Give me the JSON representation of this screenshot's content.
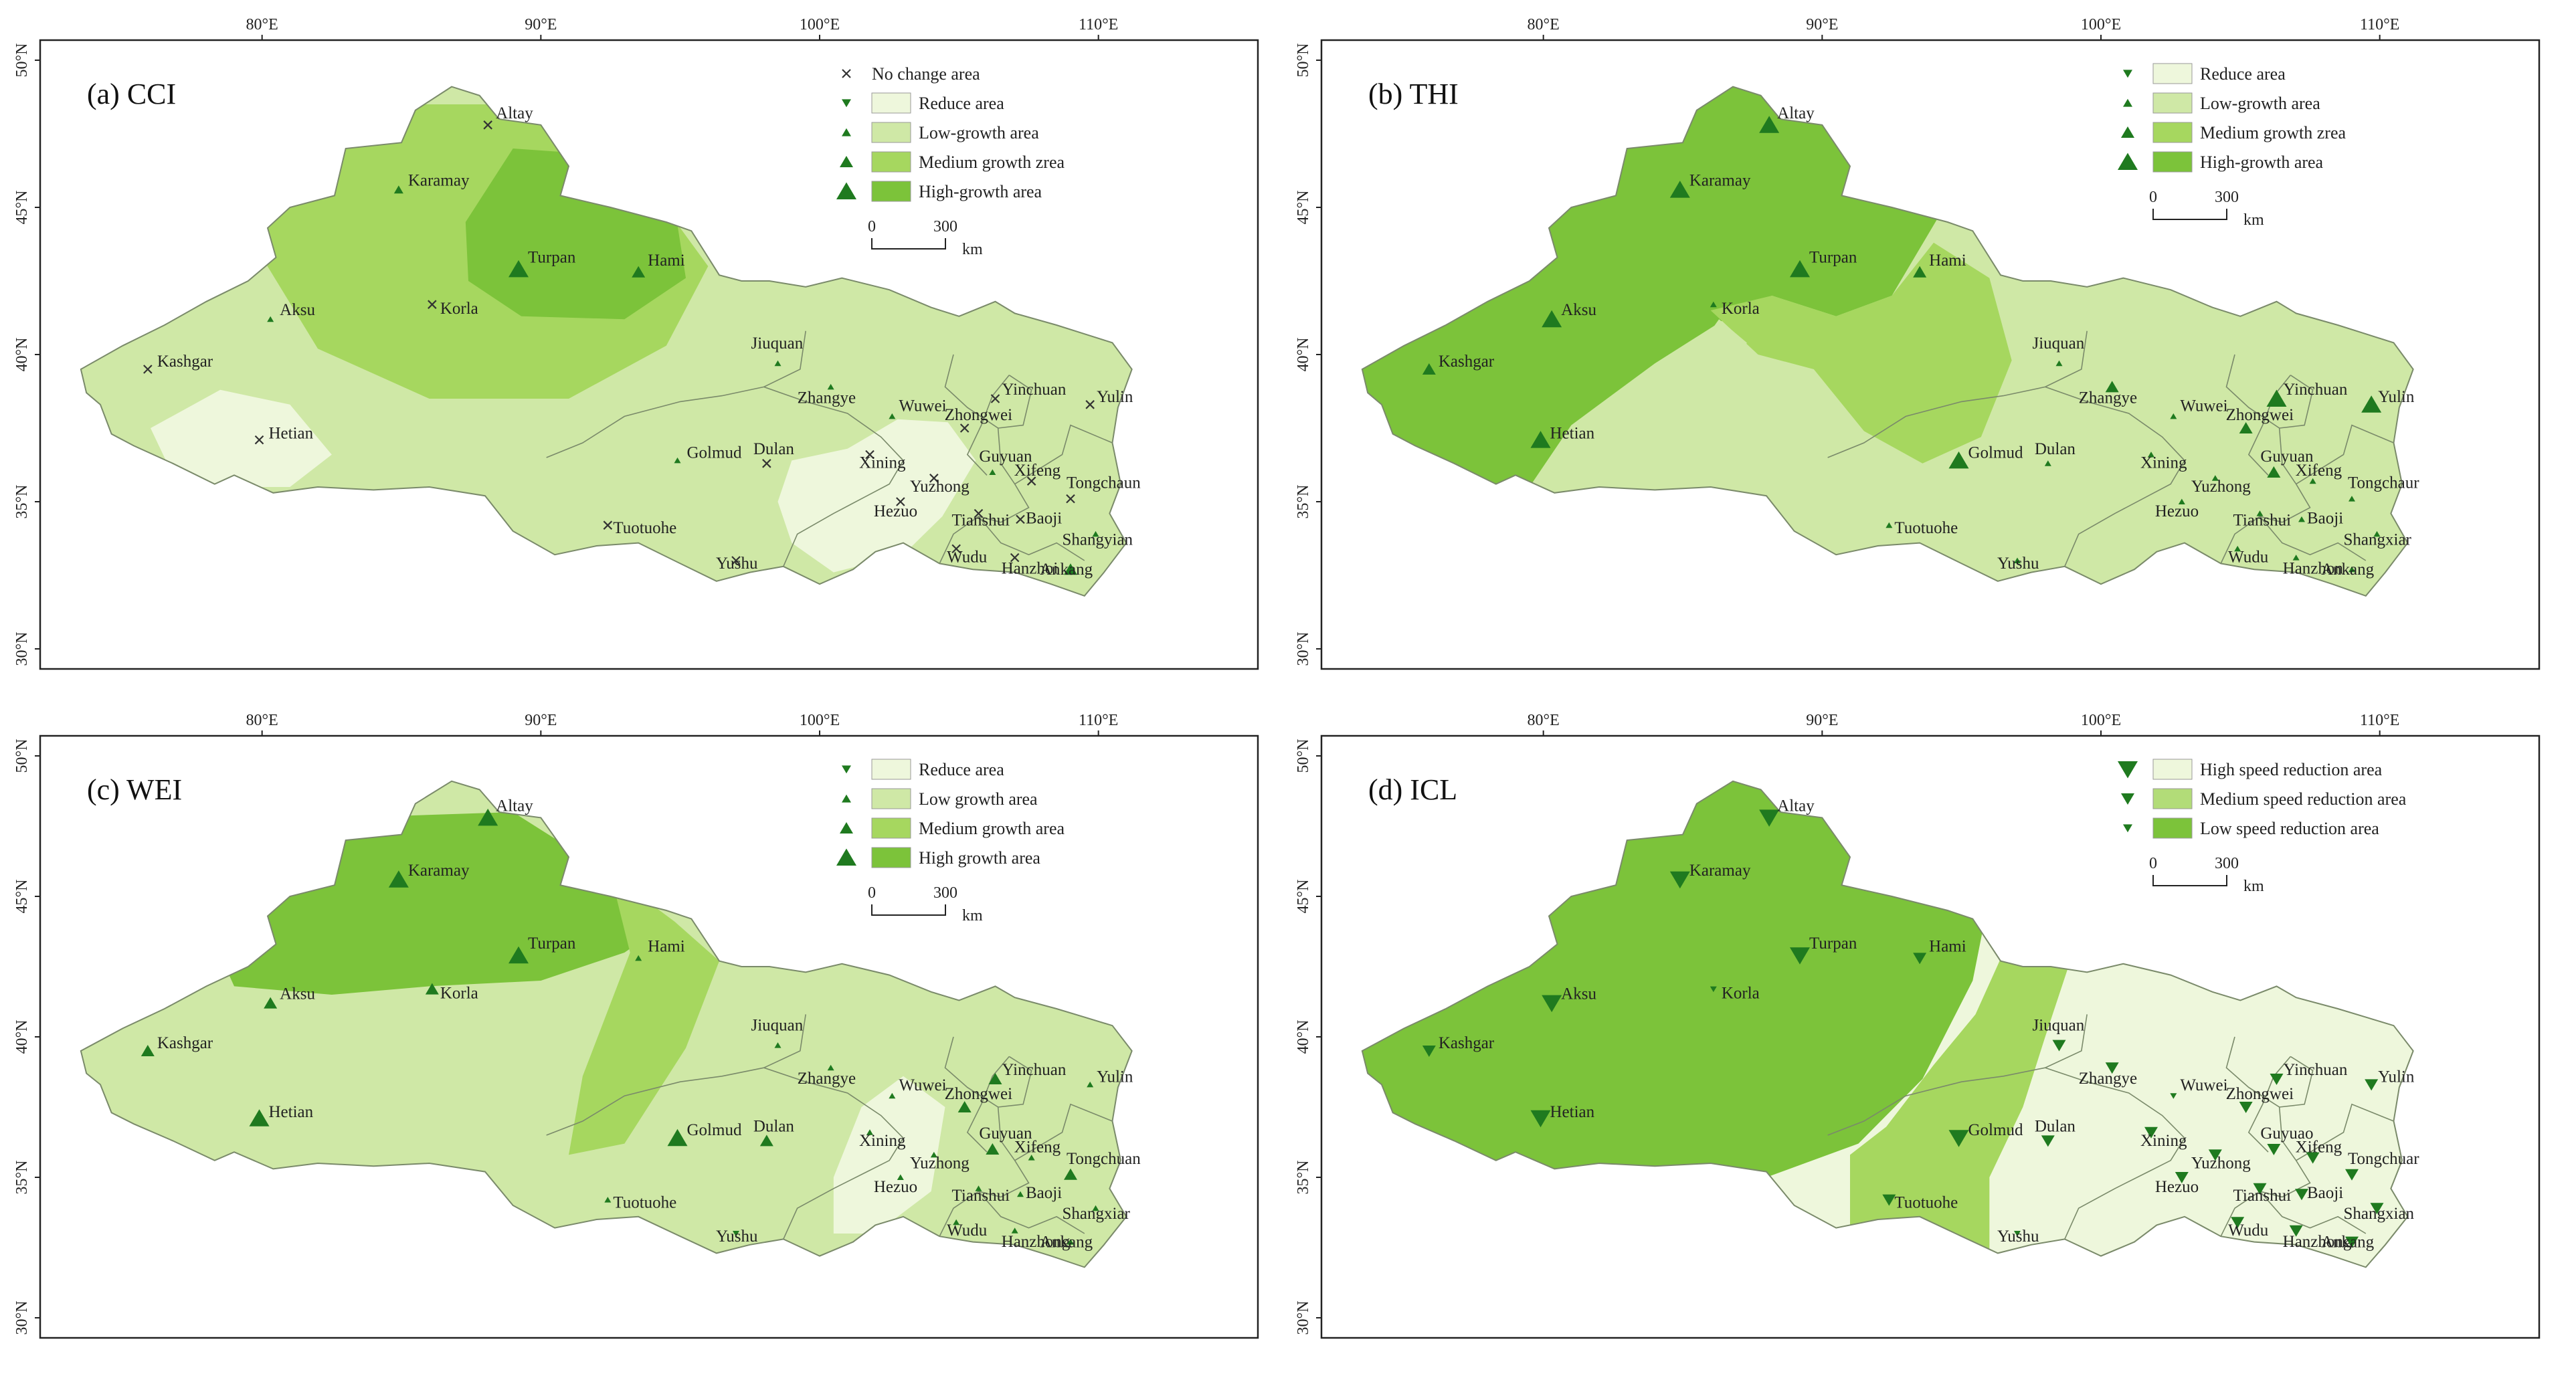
{
  "panels": [
    {
      "id": "a",
      "title": "(a) CCI",
      "lon_ticks": [
        "80°E",
        "90°E",
        "100°E",
        "110°E"
      ],
      "lat_ticks": [
        "50°N",
        "45°N",
        "40°N",
        "35°N",
        "30°N"
      ],
      "legend": [
        {
          "marker": "x",
          "label": "No change area",
          "swatch": ""
        },
        {
          "marker": "tri-down-s",
          "label": "Reduce area",
          "swatch": "#eef7dc"
        },
        {
          "marker": "tri-up-s",
          "label": "Low-growth area",
          "swatch": "#cfe8a6"
        },
        {
          "marker": "tri-up-m",
          "label": "Medium growth zrea",
          "swatch": "#a6d75f"
        },
        {
          "marker": "tri-up-l",
          "label": "High-growth area",
          "swatch": "#7cc33a"
        }
      ],
      "scale": {
        "zero": "0",
        "value": "300",
        "unit": "km"
      },
      "cities": [
        {
          "name": "Altay",
          "marker": "x"
        },
        {
          "name": "Karamay",
          "marker": "tri-up-s"
        },
        {
          "name": "Turpan",
          "marker": "tri-up-l"
        },
        {
          "name": "Hami",
          "marker": "tri-up-m"
        },
        {
          "name": "Aksu",
          "marker": "tri-up-xs"
        },
        {
          "name": "Korla",
          "marker": "x"
        },
        {
          "name": "Kashgar",
          "marker": "x"
        },
        {
          "name": "Hetian",
          "marker": "x"
        },
        {
          "name": "Jiuquan",
          "marker": "tri-up-xs"
        },
        {
          "name": "Zhangye",
          "marker": "tri-up-xs"
        },
        {
          "name": "Wuwei",
          "marker": "tri-up-xs"
        },
        {
          "name": "Golmud",
          "marker": "tri-up-xs"
        },
        {
          "name": "Dulan",
          "marker": "x"
        },
        {
          "name": "Xining",
          "marker": "x"
        },
        {
          "name": "Hezuo",
          "marker": "x"
        },
        {
          "name": "Yinchuan",
          "marker": "x"
        },
        {
          "name": "Zhongwei",
          "marker": "x"
        },
        {
          "name": "Guyuan",
          "marker": "tri-up-xs"
        },
        {
          "name": "Yulin",
          "marker": "x"
        },
        {
          "name": "Tongchaun",
          "marker": "x"
        },
        {
          "name": "Yuzhong",
          "marker": "x"
        },
        {
          "name": "Xifeng",
          "marker": "x"
        },
        {
          "name": "Baoji",
          "marker": "x"
        },
        {
          "name": "Tianshui",
          "marker": "x"
        },
        {
          "name": "Shangyian",
          "marker": "tri-up-xs"
        },
        {
          "name": "Wudu",
          "marker": "x"
        },
        {
          "name": "Hanzhoi",
          "marker": "x"
        },
        {
          "name": "Ankang",
          "marker": "tri-up-m"
        },
        {
          "name": "Tuotuohe",
          "marker": "x"
        },
        {
          "name": "Yushu",
          "marker": "x"
        }
      ]
    },
    {
      "id": "b",
      "title": "(b) THI",
      "lon_ticks": [
        "80°E",
        "90°E",
        "100°E",
        "110°E"
      ],
      "lat_ticks": [
        "50°N",
        "45°N",
        "40°N",
        "35°N",
        "30°N"
      ],
      "legend": [
        {
          "marker": "tri-down-s",
          "label": "Reduce area",
          "swatch": "#eef7dc"
        },
        {
          "marker": "tri-up-s",
          "label": "Low-growth area",
          "swatch": "#cfe8a6"
        },
        {
          "marker": "tri-up-m",
          "label": "Medium growth zrea",
          "swatch": "#a6d75f"
        },
        {
          "marker": "tri-up-l",
          "label": "High-growth area",
          "swatch": "#7cc33a"
        }
      ],
      "scale": {
        "zero": "0",
        "value": "300",
        "unit": "km"
      },
      "cities": [
        {
          "name": "Altay",
          "marker": "tri-up-l"
        },
        {
          "name": "Karamay",
          "marker": "tri-up-l"
        },
        {
          "name": "Turpan",
          "marker": "tri-up-l"
        },
        {
          "name": "Hami",
          "marker": "tri-up-m"
        },
        {
          "name": "Aksu",
          "marker": "tri-up-l"
        },
        {
          "name": "Korla",
          "marker": "tri-up-xs"
        },
        {
          "name": "Kashgar",
          "marker": "tri-up-m"
        },
        {
          "name": "Hetian",
          "marker": "tri-up-l"
        },
        {
          "name": "Jiuquan",
          "marker": "tri-up-xs"
        },
        {
          "name": "Zhangye",
          "marker": "tri-up-m"
        },
        {
          "name": "Wuwei",
          "marker": "tri-up-xs"
        },
        {
          "name": "Golmud",
          "marker": "tri-up-l"
        },
        {
          "name": "Dulan",
          "marker": "tri-up-xs"
        },
        {
          "name": "Xining",
          "marker": "tri-up-xs"
        },
        {
          "name": "Hezuo",
          "marker": "tri-up-xs"
        },
        {
          "name": "Yinchuan",
          "marker": "tri-up-l"
        },
        {
          "name": "Zhongwei",
          "marker": "tri-up-m"
        },
        {
          "name": "Guyuan",
          "marker": "tri-up-m"
        },
        {
          "name": "Yulin",
          "marker": "tri-up-l"
        },
        {
          "name": "Tongchaur",
          "marker": "tri-up-xs"
        },
        {
          "name": "Yuzhong",
          "marker": "tri-up-xs"
        },
        {
          "name": "Xifeng",
          "marker": "tri-up-xs"
        },
        {
          "name": "Baoji",
          "marker": "tri-up-xs"
        },
        {
          "name": "Tianshui",
          "marker": "tri-up-xs"
        },
        {
          "name": "Shangxiar",
          "marker": "tri-up-xs"
        },
        {
          "name": "Wudu",
          "marker": "tri-up-xs"
        },
        {
          "name": "Hanzhon",
          "marker": "tri-up-xs"
        },
        {
          "name": "Ankang",
          "marker": "tri-up-xs"
        },
        {
          "name": "Tuotuohe",
          "marker": "tri-up-xs"
        },
        {
          "name": "Yushu",
          "marker": "tri-up-xs"
        }
      ]
    },
    {
      "id": "c",
      "title": "(c) WEI",
      "lon_ticks": [
        "80°E",
        "90°E",
        "100°E",
        "110°E"
      ],
      "lat_ticks": [
        "50°N",
        "45°N",
        "40°N",
        "35°N",
        "30°N"
      ],
      "legend": [
        {
          "marker": "tri-down-s",
          "label": "Reduce area",
          "swatch": "#eef7dc"
        },
        {
          "marker": "tri-up-s",
          "label": "Low growth area",
          "swatch": "#cfe8a6"
        },
        {
          "marker": "tri-up-m",
          "label": "Medium growth area",
          "swatch": "#a6d75f"
        },
        {
          "marker": "tri-up-l",
          "label": "High growth area",
          "swatch": "#7cc33a"
        }
      ],
      "scale": {
        "zero": "0",
        "value": "300",
        "unit": "km"
      },
      "cities": [
        {
          "name": "Altay",
          "marker": "tri-up-l"
        },
        {
          "name": "Karamay",
          "marker": "tri-up-l"
        },
        {
          "name": "Turpan",
          "marker": "tri-up-l"
        },
        {
          "name": "Hami",
          "marker": "tri-up-xs"
        },
        {
          "name": "Aksu",
          "marker": "tri-up-m"
        },
        {
          "name": "Korla",
          "marker": "tri-up-m"
        },
        {
          "name": "Kashgar",
          "marker": "tri-up-m"
        },
        {
          "name": "Hetian",
          "marker": "tri-up-l"
        },
        {
          "name": "Jiuquan",
          "marker": "tri-up-xs"
        },
        {
          "name": "Zhangye",
          "marker": "tri-up-xs"
        },
        {
          "name": "Wuwei",
          "marker": "tri-up-xs"
        },
        {
          "name": "Golmud",
          "marker": "tri-up-l"
        },
        {
          "name": "Dulan",
          "marker": "tri-up-m"
        },
        {
          "name": "Xining",
          "marker": "tri-up-xs"
        },
        {
          "name": "Hezuo",
          "marker": "tri-up-xs"
        },
        {
          "name": "Yinchuan",
          "marker": "tri-up-m"
        },
        {
          "name": "Zhongwei",
          "marker": "tri-up-m"
        },
        {
          "name": "Guyuan",
          "marker": "tri-up-m"
        },
        {
          "name": "Yulin",
          "marker": "tri-up-xs"
        },
        {
          "name": "Tongchuan",
          "marker": "tri-up-m"
        },
        {
          "name": "Yuzhong",
          "marker": "tri-up-xs"
        },
        {
          "name": "Xifeng",
          "marker": "tri-up-xs"
        },
        {
          "name": "Baoji",
          "marker": "tri-up-xs"
        },
        {
          "name": "Tianshui",
          "marker": "tri-up-xs"
        },
        {
          "name": "Shangxiar",
          "marker": "tri-up-xs"
        },
        {
          "name": "Wudu",
          "marker": "tri-up-xs"
        },
        {
          "name": "Hanzhong",
          "marker": "tri-up-xs"
        },
        {
          "name": "Ankang",
          "marker": "tri-up-xs"
        },
        {
          "name": "Tuotuohe",
          "marker": "tri-up-xs"
        },
        {
          "name": "Yushu",
          "marker": "tri-down-xs"
        }
      ]
    },
    {
      "id": "d",
      "title": "(d) ICL",
      "lon_ticks": [
        "80°E",
        "90°E",
        "100°E",
        "110°E"
      ],
      "lat_ticks": [
        "50°N",
        "45°N",
        "40°N",
        "35°N",
        "30°N"
      ],
      "legend": [
        {
          "marker": "tri-down-l",
          "label": "High speed reduction area",
          "swatch": "#eef7dc"
        },
        {
          "marker": "tri-down-m",
          "label": "Medium speed reduction area",
          "swatch": "#b2dc78"
        },
        {
          "marker": "tri-down-s",
          "label": "Low speed reduction area",
          "swatch": "#7cc33a"
        }
      ],
      "scale": {
        "zero": "0",
        "value": "300",
        "unit": "km"
      },
      "cities": [
        {
          "name": "Altay",
          "marker": "tri-down-l"
        },
        {
          "name": "Karamay",
          "marker": "tri-down-l"
        },
        {
          "name": "Turpan",
          "marker": "tri-down-l"
        },
        {
          "name": "Hami",
          "marker": "tri-down-m"
        },
        {
          "name": "Aksu",
          "marker": "tri-down-l"
        },
        {
          "name": "Korla",
          "marker": "tri-down-xs"
        },
        {
          "name": "Kashgar",
          "marker": "tri-down-m"
        },
        {
          "name": "Hetian",
          "marker": "tri-down-l"
        },
        {
          "name": "Jiuquan",
          "marker": "tri-down-m"
        },
        {
          "name": "Zhangye",
          "marker": "tri-down-m"
        },
        {
          "name": "Wuwei",
          "marker": "tri-down-xs"
        },
        {
          "name": "Golmud",
          "marker": "tri-down-l"
        },
        {
          "name": "Dulan",
          "marker": "tri-down-m"
        },
        {
          "name": "Xining",
          "marker": "tri-down-m"
        },
        {
          "name": "Hezuo",
          "marker": "tri-down-m"
        },
        {
          "name": "Yinchuan",
          "marker": "tri-down-m"
        },
        {
          "name": "Zhongwei",
          "marker": "tri-down-m"
        },
        {
          "name": "Guyuao",
          "marker": "tri-down-m"
        },
        {
          "name": "Yulin",
          "marker": "tri-down-m"
        },
        {
          "name": "Tongchuar",
          "marker": "tri-down-m"
        },
        {
          "name": "Yuzhong",
          "marker": "tri-down-m"
        },
        {
          "name": "Xifeng",
          "marker": "tri-down-m"
        },
        {
          "name": "Baoji",
          "marker": "tri-down-m"
        },
        {
          "name": "Tianshui",
          "marker": "tri-down-m"
        },
        {
          "name": "Shangxian",
          "marker": "tri-down-m"
        },
        {
          "name": "Wudu",
          "marker": "tri-down-m"
        },
        {
          "name": "Hanzhong",
          "marker": "tri-down-m"
        },
        {
          "name": "Ankang",
          "marker": "tri-down-m"
        },
        {
          "name": "Tuotuohe",
          "marker": "tri-down-m"
        },
        {
          "name": "Yushu",
          "marker": "tri-down-xs"
        }
      ]
    }
  ],
  "colors": {
    "reduce": "#eef7dc",
    "low": "#cfe8a6",
    "medium": "#a6d75f",
    "high": "#7cc33a",
    "marker": "#1f7a1f",
    "border": "#7a8a6a",
    "frame": "#222222"
  }
}
